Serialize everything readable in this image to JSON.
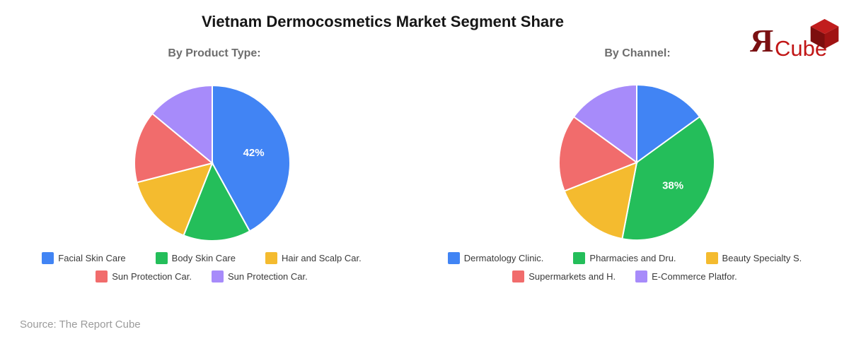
{
  "page": {
    "title": "Vietnam Dermocosmetics Market Segment Share",
    "source_note": "Source: The Report Cube"
  },
  "logo": {
    "mark": "Я",
    "name": "Cube",
    "mark_color": "#7A1012",
    "name_color": "#C11616",
    "cube_faces": {
      "top": "#C11D1D",
      "left": "#7D0E0E",
      "right": "#A01313"
    }
  },
  "chart_data": [
    {
      "type": "pie",
      "title": "By Product Type:",
      "labels": [
        "Facial Skin Care",
        "Body Skin Care",
        "Hair and Scalp Car.",
        "Sun Protection Car.",
        "Sun Protection Car."
      ],
      "values": [
        42,
        14,
        15,
        15,
        14
      ],
      "colors": [
        "#4184F4",
        "#24BE5A",
        "#F4BB2F",
        "#F16C6C",
        "#A78BFA"
      ],
      "value_labels_shown": [
        true,
        false,
        false,
        false,
        false
      ],
      "value_label_suffix": "%",
      "start_angle": 0,
      "direction": "clockwise",
      "legend_position": "bottom"
    },
    {
      "type": "pie",
      "title": "By Channel:",
      "labels": [
        "Dermatology Clinic.",
        "Pharmacies and Dru.",
        "Beauty Specialty S.",
        "Supermarkets and H.",
        "E-Commerce Platfor."
      ],
      "values": [
        15,
        38,
        16,
        16,
        15
      ],
      "colors": [
        "#4184F4",
        "#24BE5A",
        "#F4BB2F",
        "#F16C6C",
        "#A78BFA"
      ],
      "value_labels_shown": [
        false,
        true,
        false,
        false,
        false
      ],
      "value_label_suffix": "%",
      "start_angle": 0,
      "direction": "clockwise",
      "legend_position": "bottom"
    }
  ]
}
